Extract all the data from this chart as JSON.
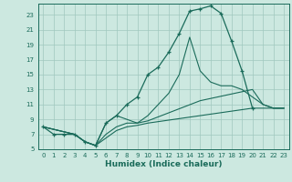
{
  "background_color": "#cce8e0",
  "grid_color": "#a0c8be",
  "line_color": "#1a6b5a",
  "xlabel": "Humidex (Indice chaleur)",
  "xlim": [
    -0.5,
    23.5
  ],
  "ylim": [
    5,
    24.5
  ],
  "yticks": [
    5,
    7,
    9,
    11,
    13,
    15,
    17,
    19,
    21,
    23
  ],
  "xticks": [
    0,
    1,
    2,
    3,
    4,
    5,
    6,
    7,
    8,
    9,
    10,
    11,
    12,
    13,
    14,
    15,
    16,
    17,
    18,
    19,
    20,
    21,
    22,
    23
  ],
  "curve_main_x": [
    0,
    1,
    2,
    3,
    4,
    5,
    6,
    7,
    8,
    9,
    10,
    11,
    12,
    13,
    14,
    15,
    16,
    17,
    18,
    19,
    20
  ],
  "curve_main_y": [
    8,
    7,
    7,
    7,
    6,
    5.5,
    8.5,
    9.5,
    11,
    12,
    15,
    16,
    18,
    20.5,
    23.5,
    23.8,
    24.2,
    23.2,
    19.5,
    15.5,
    10.5
  ],
  "curve_top_x": [
    0,
    3,
    4,
    5,
    6,
    7,
    8,
    9,
    10,
    11,
    12,
    13,
    14,
    15,
    16,
    17,
    18,
    19,
    20,
    21,
    22,
    23
  ],
  "curve_top_y": [
    8,
    7,
    6,
    5.5,
    8.5,
    9.5,
    9,
    8.5,
    9.5,
    11,
    12.5,
    15,
    20,
    15.5,
    14,
    13.5,
    13.5,
    13,
    12,
    11,
    10.5,
    10.5
  ],
  "curve_mid_x": [
    0,
    3,
    4,
    5,
    6,
    7,
    8,
    9,
    10,
    15,
    20,
    21,
    22,
    23
  ],
  "curve_mid_y": [
    8,
    7,
    6,
    5.5,
    7,
    8,
    8.5,
    8.5,
    8.8,
    11.5,
    13,
    11,
    10.5,
    10.5
  ],
  "curve_bot_x": [
    0,
    3,
    4,
    5,
    6,
    7,
    8,
    9,
    10,
    15,
    20,
    21,
    22,
    23
  ],
  "curve_bot_y": [
    8,
    7,
    6,
    5.5,
    6.5,
    7.5,
    8,
    8.2,
    8.5,
    9.5,
    10.5,
    10.5,
    10.5,
    10.5
  ]
}
